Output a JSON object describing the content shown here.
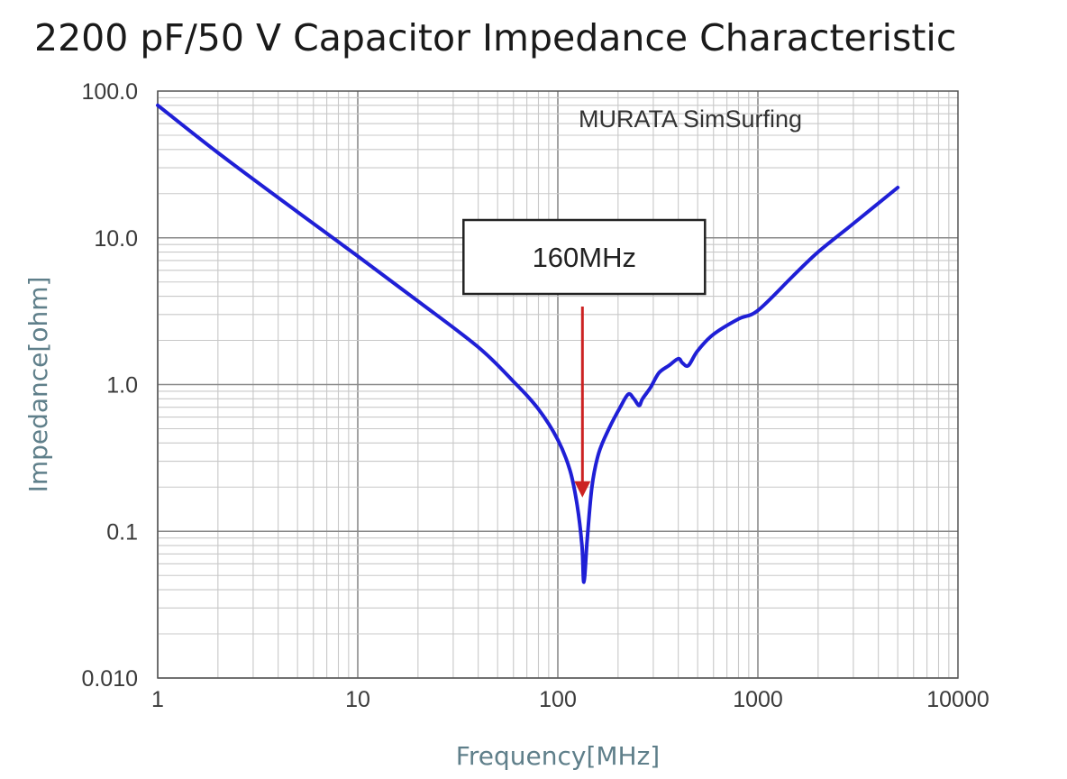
{
  "title": "2200 pF/50 V Capacitor Impedance Characteristic",
  "watermark": "MURATA  SimSurfing",
  "chart_data": {
    "type": "line",
    "title": "2200 pF/50 V Capacitor Impedance Characteristic",
    "xlabel": "Frequency[MHz]",
    "ylabel": "Impedance[ohm]",
    "x_scale": "log",
    "y_scale": "log",
    "xlim": [
      1,
      10000
    ],
    "ylim": [
      0.01,
      100
    ],
    "x_ticks": [
      "1",
      "10",
      "100",
      "1000",
      "10000"
    ],
    "y_ticks": [
      "0.010",
      "0.1",
      "1.0",
      "10.0",
      "100.0"
    ],
    "grid": true,
    "series": [
      {
        "color": "#1f1fd6",
        "x": [
          1,
          2,
          5,
          10,
          20,
          40,
          60,
          80,
          100,
          115,
          125,
          132,
          135,
          140,
          148,
          160,
          180,
          205,
          225,
          240,
          255,
          265,
          290,
          320,
          360,
          400,
          420,
          450,
          500,
          600,
          800,
          1000,
          1500,
          2000,
          3000,
          5000
        ],
        "y": [
          80,
          38,
          15,
          7.5,
          3.7,
          1.8,
          1.05,
          0.68,
          0.42,
          0.26,
          0.15,
          0.08,
          0.045,
          0.085,
          0.2,
          0.34,
          0.5,
          0.7,
          0.86,
          0.8,
          0.72,
          0.8,
          0.95,
          1.2,
          1.35,
          1.5,
          1.4,
          1.35,
          1.7,
          2.2,
          2.8,
          3.2,
          5.5,
          8,
          12.5,
          22
        ]
      }
    ],
    "annotations": [
      {
        "text": "160MHz",
        "x": 130,
        "y": 0.17,
        "arrow_color": "#cc2222"
      }
    ]
  }
}
